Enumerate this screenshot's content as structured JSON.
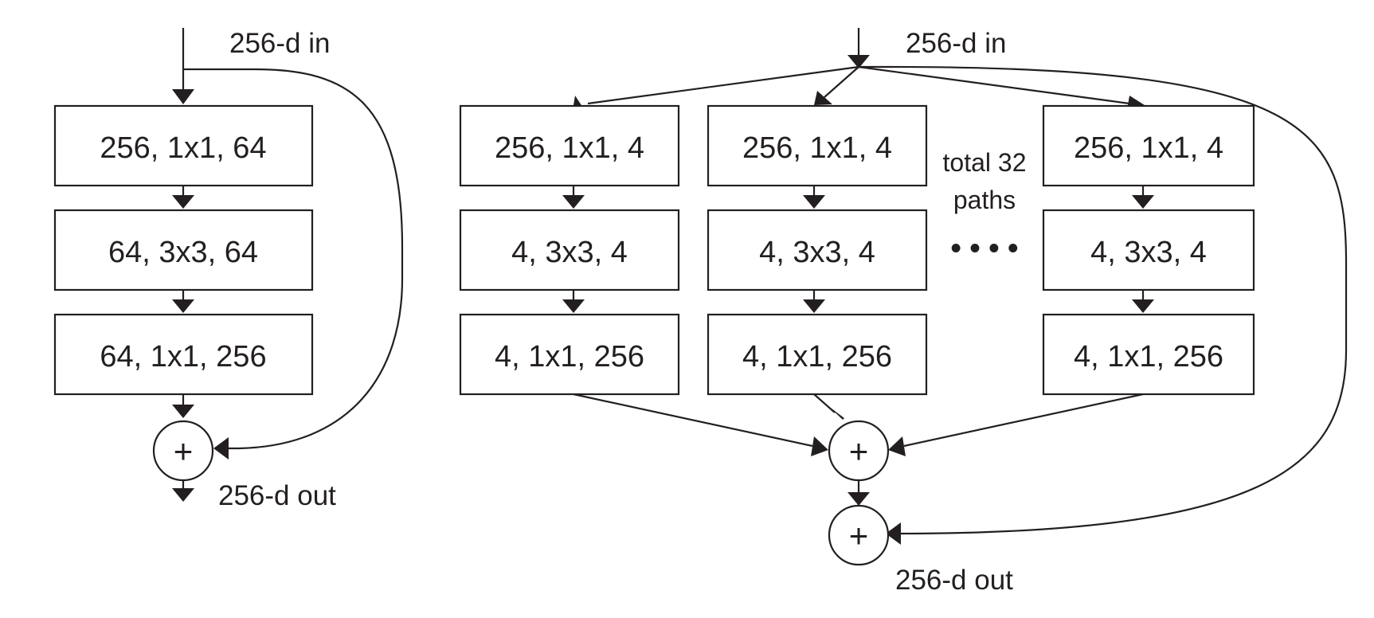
{
  "colors": {
    "ink": "#231f20",
    "background": "#ffffff"
  },
  "left_block": {
    "input_label": "256-d in",
    "output_label": "256-d out",
    "layers": [
      "256, 1x1, 64",
      "64, 3x3, 64",
      "64, 1x1, 256"
    ],
    "sum_symbol": "+"
  },
  "right_block": {
    "input_label": "256-d in",
    "output_label": "256-d out",
    "paths": [
      {
        "layers": [
          "256, 1x1, 4",
          "4, 3x3, 4",
          "4, 1x1, 256"
        ]
      },
      {
        "layers": [
          "256, 1x1, 4",
          "4, 3x3, 4",
          "4, 1x1, 256"
        ]
      },
      {
        "layers": [
          "256, 1x1, 4",
          "4, 3x3, 4",
          "4, 1x1, 256"
        ]
      }
    ],
    "paths_note_line1": "total 32",
    "paths_note_line2": "paths",
    "ellipsis": "• • • •",
    "aggregate_symbol": "+",
    "sum_symbol": "+"
  }
}
